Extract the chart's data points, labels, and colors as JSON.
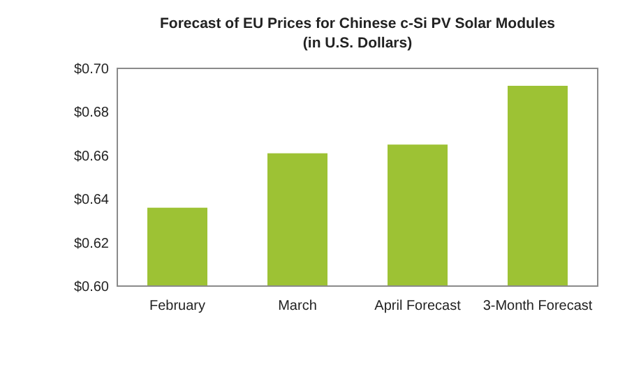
{
  "chart_data": {
    "type": "bar",
    "title": "Forecast of EU Prices for Chinese c-Si PV Solar Modules",
    "subtitle": "(in U.S. Dollars)",
    "categories": [
      "February",
      "March",
      "April Forecast",
      "3-Month Forecast"
    ],
    "values": [
      0.636,
      0.661,
      0.665,
      0.692
    ],
    "color": "#9dc234",
    "ylim": [
      0.6,
      0.7
    ],
    "yticks": [
      {
        "value": 0.6,
        "label": "$0.60"
      },
      {
        "value": 0.62,
        "label": "$0.62"
      },
      {
        "value": 0.64,
        "label": "$0.64"
      },
      {
        "value": 0.66,
        "label": "$0.66"
      },
      {
        "value": 0.68,
        "label": "$0.68"
      },
      {
        "value": 0.7,
        "label": "$0.70"
      }
    ],
    "grid": false
  }
}
